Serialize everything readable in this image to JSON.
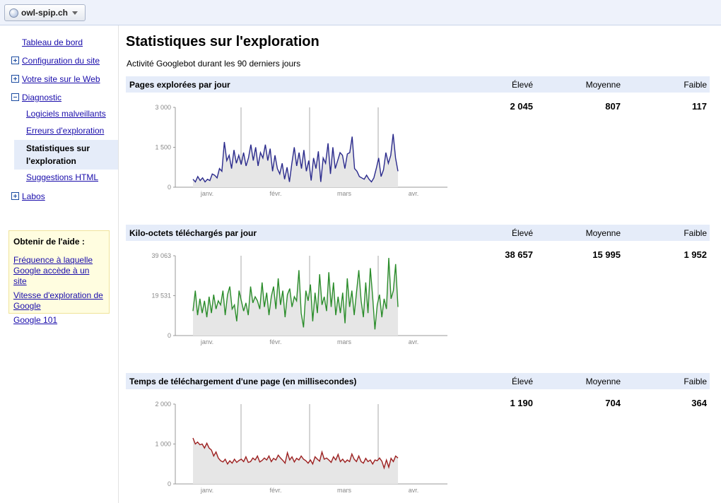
{
  "topbar": {
    "site_name": "owl-spip.ch",
    "site_icon": "globe-icon"
  },
  "sidebar": {
    "dashboard": "Tableau de bord",
    "config": "Configuration du site",
    "your_site": "Votre site sur le Web",
    "diagnostic": "Diagnostic",
    "diagnostic_items": [
      "Logiciels malveillants",
      "Erreurs d'exploration",
      "Statistiques sur l'exploration",
      "Suggestions HTML"
    ],
    "labs": "Labos"
  },
  "help": {
    "title": "Obtenir de l'aide :",
    "links": [
      "Fréquence à laquelle Google accède à un site",
      "Vitesse d'exploration de Google",
      "Google 101"
    ]
  },
  "main": {
    "title": "Statistiques sur l'exploration",
    "subtitle": "Activité Googlebot durant les 90 derniers jours",
    "col_high": "Élevé",
    "col_avg": "Moyenne",
    "col_low": "Faible"
  },
  "sections": [
    {
      "title": "Pages explorées par jour",
      "high": "2 045",
      "avg": "807",
      "low": "117"
    },
    {
      "title": "Kilo-octets téléchargés par jour",
      "high": "38 657",
      "avg": "15 995",
      "low": "1 952"
    },
    {
      "title": "Temps de téléchargement d'une page (en millisecondes)",
      "high": "1 190",
      "avg": "704",
      "low": "364"
    }
  ],
  "chart_data": [
    {
      "type": "area",
      "color": "#2a2a8c",
      "ylim": [
        0,
        3000
      ],
      "yticks": [
        "0",
        "1 500",
        "3 000"
      ],
      "xticks": [
        "janv.",
        "févr.",
        "mars",
        "avr."
      ],
      "values": [
        300,
        200,
        400,
        250,
        350,
        200,
        300,
        250,
        500,
        450,
        350,
        700,
        600,
        1700,
        1000,
        1200,
        700,
        1400,
        900,
        1200,
        850,
        1300,
        800,
        1100,
        1600,
        1000,
        1500,
        800,
        1300,
        1100,
        1600,
        1000,
        1450,
        600,
        1200,
        700,
        500,
        900,
        300,
        750,
        200,
        900,
        1500,
        800,
        1300,
        700,
        1400,
        600,
        1000,
        250,
        1100,
        700,
        1350,
        200,
        1100,
        900,
        1650,
        500,
        1500,
        700,
        1000,
        1300,
        1200,
        700,
        1250,
        1300,
        1900,
        700,
        600,
        400,
        350,
        300,
        450,
        300,
        200,
        350,
        700,
        1100,
        400,
        650,
        1300,
        900,
        1200,
        2000,
        1100,
        600
      ]
    },
    {
      "type": "area",
      "color": "#2a8c2a",
      "ylim": [
        0,
        39063
      ],
      "yticks": [
        "0",
        "19 531",
        "39 063"
      ],
      "xticks": [
        "janv.",
        "févr.",
        "mars",
        "avr."
      ],
      "values": [
        12000,
        22000,
        10000,
        18000,
        11000,
        17000,
        9000,
        19000,
        11000,
        20000,
        13000,
        17000,
        15000,
        22000,
        10000,
        20000,
        24000,
        13000,
        15000,
        7000,
        22000,
        17000,
        12000,
        16000,
        10000,
        24000,
        16000,
        19000,
        17000,
        13000,
        26000,
        14000,
        21000,
        10000,
        19000,
        24000,
        13000,
        28000,
        15000,
        22000,
        9000,
        20000,
        23000,
        14000,
        19000,
        17000,
        32000,
        11000,
        4000,
        22000,
        17000,
        25000,
        7000,
        21000,
        11000,
        30000,
        15000,
        19000,
        12000,
        31000,
        14000,
        26000,
        10000,
        19000,
        11000,
        21000,
        6000,
        28000,
        14000,
        22000,
        10000,
        21000,
        32000,
        17000,
        9000,
        26000,
        11000,
        33000,
        19000,
        3000,
        15000,
        20000,
        9000,
        18000,
        13000,
        38000,
        18000,
        22000,
        35000,
        14000
      ]
    },
    {
      "type": "area",
      "color": "#9c1f1f",
      "ylim": [
        0,
        2000
      ],
      "yticks": [
        "0",
        "1 000",
        "2 000"
      ],
      "xticks": [
        "janv.",
        "févr.",
        "mars",
        "avr."
      ],
      "values": [
        1150,
        1000,
        1050,
        980,
        1000,
        900,
        1020,
        900,
        850,
        700,
        800,
        650,
        580,
        550,
        620,
        500,
        580,
        520,
        620,
        540,
        590,
        620,
        560,
        680,
        540,
        560,
        650,
        600,
        700,
        550,
        590,
        650,
        600,
        700,
        560,
        640,
        600,
        720,
        650,
        590,
        520,
        780,
        600,
        680,
        550,
        640,
        600,
        700,
        620,
        580,
        520,
        600,
        500,
        680,
        620,
        570,
        800,
        620,
        650,
        600,
        540,
        680,
        600,
        740,
        560,
        620,
        540,
        600,
        560,
        750,
        620,
        560,
        700,
        560,
        520,
        640,
        560,
        600,
        500,
        600,
        580,
        650,
        570,
        400,
        600,
        420,
        640,
        560,
        700,
        650
      ]
    }
  ]
}
